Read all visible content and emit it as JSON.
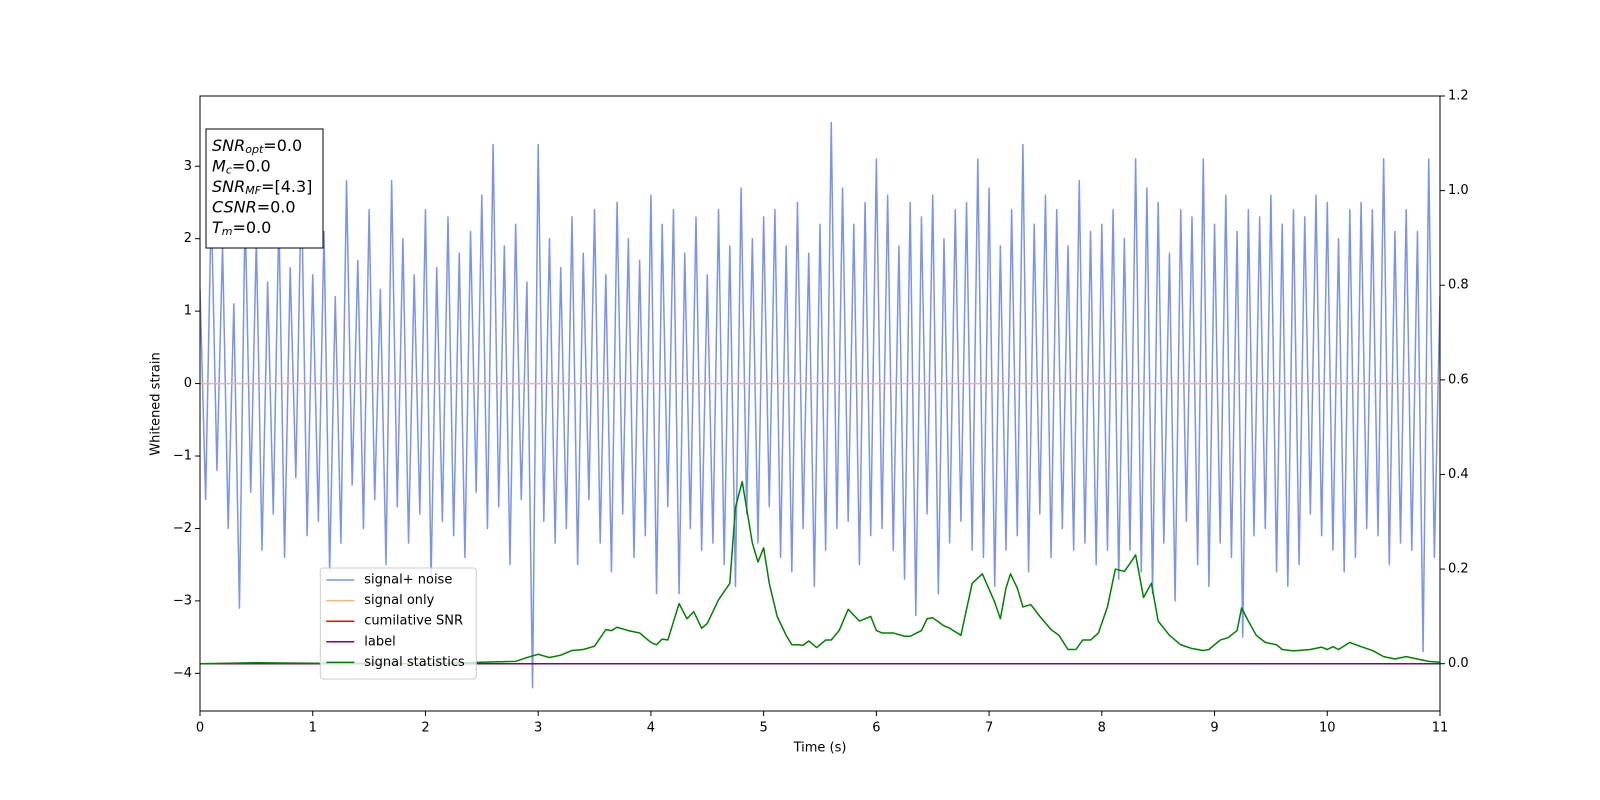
{
  "chart_data": {
    "type": "line",
    "xlabel": "Time (s)",
    "ylabel": "Whitened strain",
    "xlim": [
      0,
      11
    ],
    "xticks": [
      0,
      1,
      2,
      3,
      4,
      5,
      6,
      7,
      8,
      9,
      10,
      11
    ],
    "ylim": [
      -4.52,
      3.97
    ],
    "yticks": [
      {
        "value": -4,
        "label": "−4"
      },
      {
        "value": -3,
        "label": "−3"
      },
      {
        "value": -2,
        "label": "−2"
      },
      {
        "value": -1,
        "label": "−1"
      },
      0,
      1,
      2,
      3
    ],
    "y2lim": [
      -0.1,
      1.2
    ],
    "y2ticks": [
      {
        "value": 0,
        "label": "0.0"
      },
      0.2,
      0.4,
      0.6,
      0.8,
      {
        "value": 1,
        "label": "1.0"
      },
      1.2
    ],
    "legend_loc": "lower left",
    "annotations": [
      {
        "main": "SNR",
        "sub": "opt",
        "rest": "=0.0"
      },
      {
        "main": "M",
        "sub": "c",
        "rest": "=0.0"
      },
      {
        "main": "SNR",
        "sub": "MF",
        "rest": "=[4.3]"
      },
      {
        "main": "CSNR",
        "sub": null,
        "rest": "=0.0"
      },
      {
        "main": "T",
        "sub": "m",
        "rest": "=0.0"
      }
    ],
    "series": [
      {
        "name": "signal+ noise",
        "color": "#7a95e8",
        "axis": "y",
        "x": [
          0,
          0.05,
          0.1,
          0.15,
          0.2,
          0.25,
          0.3,
          0.35,
          0.4,
          0.45,
          0.5,
          0.55,
          0.6,
          0.65,
          0.7,
          0.75,
          0.8,
          0.85,
          0.9,
          0.95,
          1,
          1.05,
          1.1,
          1.15,
          1.2,
          1.25,
          1.3,
          1.35,
          1.4,
          1.45,
          1.5,
          1.55,
          1.6,
          1.65,
          1.7,
          1.75,
          1.8,
          1.85,
          1.9,
          1.95,
          2,
          2.05,
          2.1,
          2.15,
          2.2,
          2.25,
          2.3,
          2.35,
          2.4,
          2.45,
          2.5,
          2.55,
          2.6,
          2.65,
          2.7,
          2.75,
          2.8,
          2.85,
          2.9,
          2.95,
          3,
          3.05,
          3.1,
          3.15,
          3.2,
          3.25,
          3.3,
          3.35,
          3.4,
          3.45,
          3.5,
          3.55,
          3.6,
          3.65,
          3.7,
          3.75,
          3.8,
          3.85,
          3.9,
          3.95,
          4,
          4.05,
          4.1,
          4.15,
          4.2,
          4.25,
          4.3,
          4.35,
          4.4,
          4.45,
          4.5,
          4.55,
          4.6,
          4.65,
          4.7,
          4.75,
          4.8,
          4.85,
          4.9,
          4.95,
          5,
          5.05,
          5.1,
          5.15,
          5.2,
          5.25,
          5.3,
          5.35,
          5.4,
          5.45,
          5.5,
          5.55,
          5.6,
          5.65,
          5.7,
          5.75,
          5.8,
          5.85,
          5.9,
          5.95,
          6,
          6.05,
          6.1,
          6.15,
          6.2,
          6.25,
          6.3,
          6.35,
          6.4,
          6.45,
          6.5,
          6.55,
          6.6,
          6.65,
          6.7,
          6.75,
          6.8,
          6.85,
          6.9,
          6.95,
          7,
          7.05,
          7.1,
          7.15,
          7.2,
          7.25,
          7.3,
          7.35,
          7.4,
          7.45,
          7.5,
          7.55,
          7.6,
          7.65,
          7.7,
          7.75,
          7.8,
          7.85,
          7.9,
          7.95,
          8,
          8.05,
          8.1,
          8.15,
          8.2,
          8.25,
          8.3,
          8.35,
          8.4,
          8.45,
          8.5,
          8.55,
          8.6,
          8.65,
          8.7,
          8.75,
          8.8,
          8.85,
          8.9,
          8.95,
          9,
          9.05,
          9.1,
          9.15,
          9.2,
          9.25,
          9.3,
          9.35,
          9.4,
          9.45,
          9.5,
          9.55,
          9.6,
          9.65,
          9.7,
          9.75,
          9.8,
          9.85,
          9.9,
          9.95,
          10,
          10.05,
          10.1,
          10.15,
          10.2,
          10.25,
          10.3,
          10.35,
          10.4,
          10.45,
          10.5,
          10.55,
          10.6,
          10.65,
          10.7,
          10.75,
          10.8,
          10.85,
          10.9,
          10.95,
          11
        ],
        "values": [
          1.3,
          -1.6,
          2.5,
          -1.2,
          1.9,
          -2.0,
          1.1,
          -3.1,
          2.4,
          -1.5,
          2.0,
          -2.3,
          1.4,
          -1.8,
          2.3,
          -2.4,
          1.6,
          -1.3,
          2.8,
          -2.1,
          1.5,
          -1.9,
          2.1,
          -2.6,
          1.2,
          -2.2,
          2.8,
          -1.4,
          1.7,
          -2.0,
          2.4,
          -1.6,
          1.3,
          -2.5,
          2.8,
          -1.7,
          2.0,
          -2.2,
          1.5,
          -1.8,
          2.4,
          -2.7,
          1.6,
          -1.9,
          2.3,
          -2.1,
          1.8,
          -2.4,
          2.1,
          -1.5,
          2.6,
          -2.0,
          3.3,
          -1.7,
          1.9,
          -2.5,
          2.2,
          -1.6,
          1.4,
          -4.2,
          3.3,
          -1.9,
          2.0,
          -2.2,
          1.6,
          -2.0,
          2.3,
          -2.5,
          1.8,
          -1.6,
          2.4,
          -2.2,
          1.5,
          -2.6,
          2.5,
          -1.8,
          2.0,
          -2.4,
          1.7,
          -2.1,
          2.6,
          -2.9,
          2.2,
          -1.7,
          2.4,
          -2.9,
          1.8,
          -2.0,
          2.3,
          -2.3,
          1.5,
          -2.2,
          2.4,
          -2.5,
          1.9,
          -2.8,
          2.7,
          -1.8,
          2.0,
          -2.2,
          2.3,
          -1.7,
          2.4,
          -2.4,
          1.9,
          -2.6,
          2.5,
          -2.0,
          1.8,
          -2.8,
          2.2,
          -2.3,
          3.6,
          -2.0,
          2.7,
          -1.9,
          2.2,
          -2.5,
          2.5,
          -2.1,
          3.1,
          -2.0,
          2.6,
          -2.3,
          1.9,
          -2.7,
          2.5,
          -3.2,
          2.3,
          -1.8,
          2.6,
          -2.9,
          2.0,
          -2.2,
          2.4,
          -1.9,
          2.5,
          -2.3,
          3.1,
          -2.4,
          2.7,
          -2.8,
          1.9,
          -2.3,
          2.4,
          -2.1,
          3.3,
          -2.6,
          2.2,
          -1.8,
          2.6,
          -2.4,
          2.4,
          -2.0,
          1.9,
          -2.3,
          2.8,
          -2.2,
          2.1,
          -2.5,
          2.2,
          -2.3,
          2.4,
          -2.7,
          2.0,
          -2.3,
          3.1,
          -2.6,
          2.7,
          -2.9,
          2.5,
          -2.2,
          1.8,
          -3.0,
          2.4,
          -1.9,
          2.3,
          -2.5,
          3.1,
          -2.8,
          2.2,
          -2.2,
          2.6,
          -2.4,
          2.1,
          -3.5,
          2.4,
          -2.1,
          2.3,
          -2.0,
          2.6,
          -2.6,
          2.2,
          -2.8,
          2.4,
          -2.5,
          2.3,
          -1.8,
          2.6,
          -2.1,
          2.5,
          -2.3,
          2.0,
          -2.6,
          2.4,
          -2.4,
          2.5,
          -2.0,
          2.4,
          -2.1,
          3.1,
          -2.5,
          2.1,
          -2.2,
          2.4,
          -2.3,
          2.1,
          -3.7,
          3.1,
          -2.4,
          1.2
        ]
      },
      {
        "name": "signal only",
        "color": "#f5b878",
        "axis": "y",
        "x": [
          0,
          11
        ],
        "values": [
          0,
          0
        ]
      },
      {
        "name": "cumilative SNR",
        "color": "#ff0000",
        "axis": "y2",
        "x": [
          0,
          11
        ],
        "values": [
          0,
          0
        ]
      },
      {
        "name": "label",
        "color": "#800080",
        "axis": "y2",
        "x": [
          0,
          11
        ],
        "values": [
          0,
          0
        ]
      },
      {
        "name": "signal statistics",
        "color": "#008000",
        "axis": "y2",
        "x": [
          0,
          0.5,
          1,
          1.5,
          2,
          2.5,
          2.8,
          2.9,
          3,
          3.1,
          3.2,
          3.3,
          3.4,
          3.5,
          3.6,
          3.65,
          3.7,
          3.8,
          3.9,
          4,
          4.05,
          4.1,
          4.15,
          4.25,
          4.32,
          4.38,
          4.45,
          4.5,
          4.6,
          4.7,
          4.75,
          4.81,
          4.9,
          4.95,
          5,
          5.05,
          5.12,
          5.2,
          5.25,
          5.3,
          5.35,
          5.4,
          5.47,
          5.55,
          5.6,
          5.67,
          5.75,
          5.85,
          5.95,
          6,
          6.05,
          6.15,
          6.25,
          6.3,
          6.4,
          6.45,
          6.5,
          6.6,
          6.65,
          6.75,
          6.85,
          6.94,
          7.05,
          7.1,
          7.15,
          7.19,
          7.25,
          7.3,
          7.37,
          7.45,
          7.55,
          7.62,
          7.7,
          7.77,
          7.83,
          7.9,
          7.97,
          8.05,
          8.12,
          8.2,
          8.25,
          8.3,
          8.37,
          8.44,
          8.5,
          8.6,
          8.7,
          8.8,
          8.9,
          8.95,
          9.05,
          9.12,
          9.2,
          9.24,
          9.3,
          9.37,
          9.45,
          9.55,
          9.6,
          9.7,
          9.85,
          9.95,
          10,
          10.05,
          10.1,
          10.2,
          10.3,
          10.4,
          10.5,
          10.6,
          10.7,
          10.8,
          10.9,
          11
        ],
        "values": [
          0,
          0.002,
          0.001,
          0.001,
          0,
          0.003,
          0.005,
          0.013,
          0.02,
          0.013,
          0.018,
          0.028,
          0.03,
          0.037,
          0.072,
          0.07,
          0.077,
          0.07,
          0.065,
          0.045,
          0.04,
          0.052,
          0.05,
          0.127,
          0.095,
          0.11,
          0.075,
          0.085,
          0.135,
          0.17,
          0.33,
          0.385,
          0.255,
          0.215,
          0.245,
          0.17,
          0.1,
          0.06,
          0.04,
          0.04,
          0.039,
          0.048,
          0.034,
          0.05,
          0.05,
          0.07,
          0.115,
          0.09,
          0.1,
          0.07,
          0.065,
          0.065,
          0.058,
          0.058,
          0.07,
          0.095,
          0.097,
          0.08,
          0.075,
          0.06,
          0.17,
          0.19,
          0.13,
          0.095,
          0.16,
          0.19,
          0.16,
          0.12,
          0.125,
          0.1,
          0.072,
          0.06,
          0.03,
          0.03,
          0.05,
          0.05,
          0.065,
          0.12,
          0.2,
          0.195,
          0.212,
          0.23,
          0.14,
          0.17,
          0.09,
          0.06,
          0.04,
          0.032,
          0.028,
          0.03,
          0.05,
          0.055,
          0.07,
          0.118,
          0.09,
          0.06,
          0.045,
          0.04,
          0.03,
          0.027,
          0.03,
          0.035,
          0.03,
          0.036,
          0.03,
          0.045,
          0.036,
          0.028,
          0.015,
          0.01,
          0.015,
          0.01,
          0.005,
          0.003
        ]
      }
    ]
  }
}
